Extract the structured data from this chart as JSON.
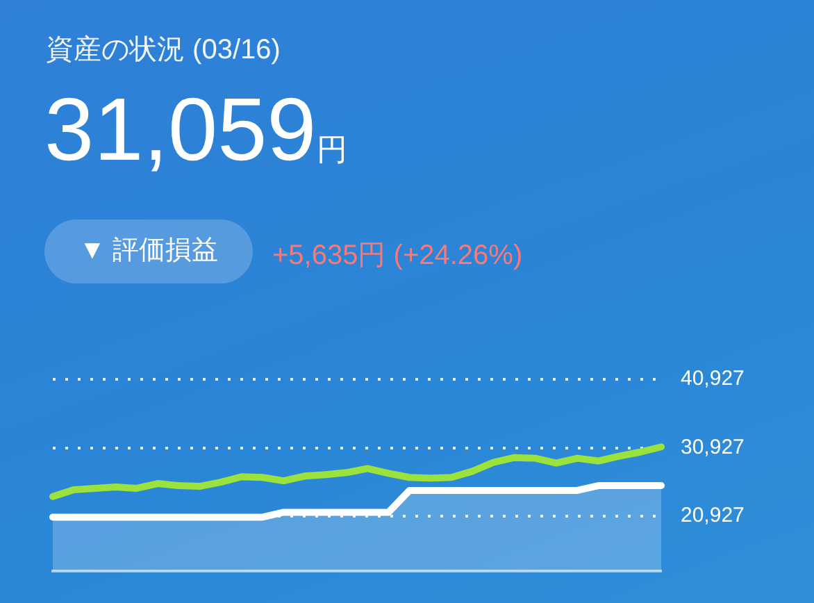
{
  "chart_data": {
    "type": "line",
    "title": "資産の状況 (03/16)",
    "subtitle": "31,059円",
    "annotations": [
      "▼ 評価損益",
      "+5,635円 (+24.26%)"
    ],
    "categories": [
      null,
      null,
      null,
      null,
      null,
      null,
      null,
      null,
      null,
      null,
      null,
      null,
      null,
      null,
      null,
      null,
      null,
      null,
      null,
      null,
      null,
      null,
      null,
      null,
      null,
      null,
      null,
      null,
      null,
      null
    ],
    "series": [
      {
        "color": "#9be23c",
        "values": [
          23800,
          24800,
          25000,
          25200,
          25000,
          25700,
          25400,
          25300,
          25900,
          26700,
          26600,
          26100,
          26800,
          27000,
          27300,
          27900,
          27200,
          26600,
          26500,
          26600,
          27500,
          28800,
          29500,
          29400,
          28700,
          29400,
          29000,
          29700,
          30300,
          31059
        ]
      },
      {
        "type": "area",
        "color": "#ffffff",
        "values": [
          20800,
          20800,
          20800,
          20800,
          20800,
          20800,
          20800,
          20800,
          20800,
          20800,
          20800,
          21500,
          21500,
          21500,
          21500,
          21500,
          21500,
          24700,
          24700,
          24700,
          24700,
          24700,
          24700,
          24700,
          24700,
          24700,
          25400,
          25400,
          25400,
          25400
        ]
      }
    ],
    "ylim": [
      12927,
      40927
    ],
    "yticks": [
      {
        "value": 20927,
        "label": "20,927"
      },
      {
        "value": 30927,
        "label": "30,927"
      },
      {
        "value": 40927,
        "label": "40,927"
      }
    ],
    "grid": "y",
    "tick_labels": "y",
    "legend": false
  }
}
